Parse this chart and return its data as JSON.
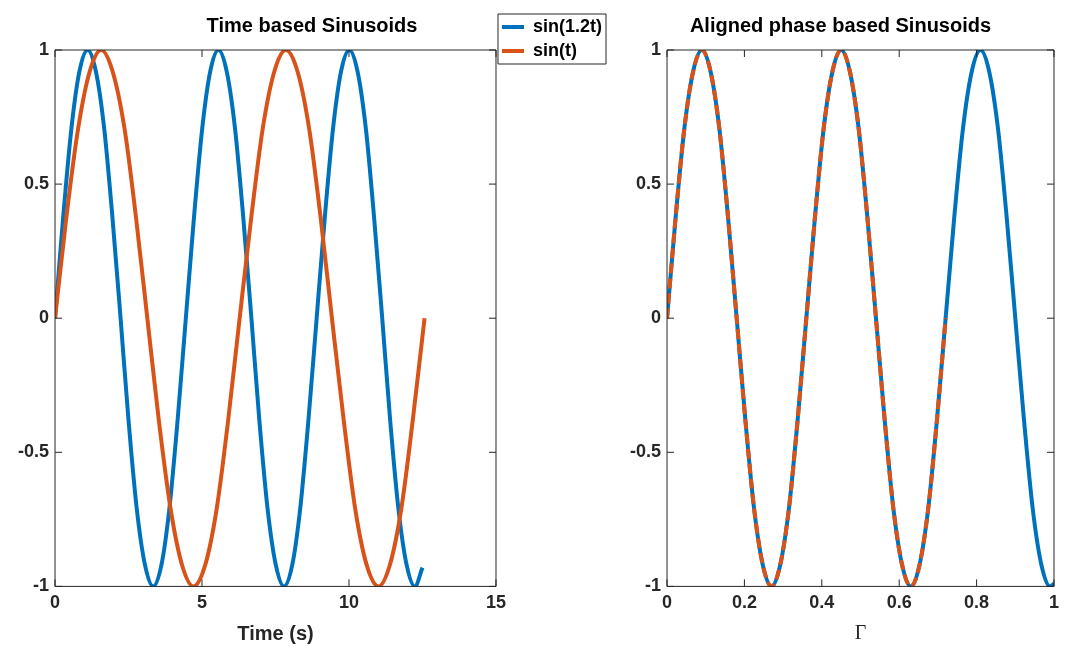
{
  "chart_data": [
    {
      "type": "line",
      "title": "Time based Sinusoids",
      "xlabel": "Time (s)",
      "xlim": [
        0,
        15
      ],
      "xticks": [
        0,
        5,
        10,
        15
      ],
      "ylim": [
        -1,
        1
      ],
      "yticks": [
        -1,
        -0.5,
        0,
        0.5,
        1
      ],
      "legend": "top right",
      "series": [
        {
          "name": "sin(1.2t)",
          "color": "#0072bd",
          "line_style": "solid",
          "x": [
            0,
            0.28,
            0.56,
            0.83,
            1.11,
            1.39,
            1.67,
            1.95,
            2.23,
            2.5,
            2.78,
            3.06,
            3.34,
            3.62,
            3.89,
            4.17,
            4.45,
            4.73,
            5.01,
            5.28,
            5.56,
            5.84,
            6.12,
            6.4,
            6.68,
            6.95,
            7.23,
            7.51,
            7.79,
            8.07,
            8.34,
            8.62,
            8.9,
            9.18,
            9.46,
            9.73,
            10.01,
            10.29,
            10.57,
            10.85,
            11.13,
            11.4,
            11.68,
            11.96,
            12.24,
            12.5
          ],
          "values": [
            0,
            0.38,
            0.71,
            0.92,
            1,
            0.92,
            0.71,
            0.38,
            0,
            -0.38,
            -0.71,
            -0.92,
            -1,
            -0.92,
            -0.71,
            -0.38,
            0,
            0.38,
            0.71,
            0.92,
            1,
            0.92,
            0.71,
            0.38,
            0,
            -0.38,
            -0.71,
            -0.92,
            -1,
            -0.92,
            -0.71,
            -0.38,
            0,
            0.38,
            0.71,
            0.92,
            1,
            0.92,
            0.71,
            0.38,
            0,
            -0.38,
            -0.71,
            -0.92,
            -1,
            -0.93
          ]
        },
        {
          "name": "sin(t)",
          "color": "#d95319",
          "line_style": "solid",
          "x": [
            0,
            0.39,
            0.79,
            1.18,
            1.57,
            1.96,
            2.36,
            2.75,
            3.14,
            3.53,
            3.93,
            4.32,
            4.71,
            5.11,
            5.5,
            5.89,
            6.28,
            6.68,
            7.07,
            7.46,
            7.85,
            8.25,
            8.64,
            9.03,
            9.42,
            9.82,
            10.21,
            10.6,
            11,
            11.39,
            11.78,
            12.17,
            12.57
          ],
          "values": [
            0,
            0.38,
            0.71,
            0.92,
            1,
            0.92,
            0.71,
            0.38,
            0,
            -0.38,
            -0.71,
            -0.92,
            -1,
            -0.92,
            -0.71,
            -0.38,
            0,
            0.38,
            0.71,
            0.92,
            1,
            0.92,
            0.71,
            0.38,
            0,
            -0.38,
            -0.71,
            -0.92,
            -1,
            -0.92,
            -0.71,
            -0.38,
            0
          ]
        }
      ]
    },
    {
      "type": "line",
      "title": "Aligned phase based Sinusoids",
      "xlabel": "Γ",
      "xlim": [
        0,
        1
      ],
      "xticks": [
        0,
        0.2,
        0.4,
        0.6,
        0.8,
        1
      ],
      "ylim": [
        -1,
        1
      ],
      "yticks": [
        -1,
        -0.5,
        0,
        0.5,
        1
      ],
      "series": [
        {
          "color": "#0072bd",
          "line_style": "solid",
          "x": [
            0,
            0.0225,
            0.045,
            0.0675,
            0.09,
            0.1125,
            0.135,
            0.1575,
            0.18,
            0.2025,
            0.225,
            0.2475,
            0.27,
            0.2925,
            0.315,
            0.3375,
            0.36,
            0.3825,
            0.405,
            0.4275,
            0.45,
            0.4725,
            0.495,
            0.5175,
            0.54,
            0.5625,
            0.585,
            0.6075,
            0.63,
            0.6525,
            0.675,
            0.6975,
            0.72,
            0.7425,
            0.765,
            0.7875,
            0.81,
            0.8325,
            0.855,
            0.8775,
            0.9,
            0.9225,
            0.945,
            0.9675,
            0.99,
            1
          ],
          "values": [
            0,
            0.38,
            0.71,
            0.92,
            1,
            0.92,
            0.71,
            0.38,
            0,
            -0.38,
            -0.71,
            -0.92,
            -1,
            -0.92,
            -0.71,
            -0.38,
            0,
            0.38,
            0.71,
            0.92,
            1,
            0.92,
            0.71,
            0.38,
            0,
            -0.38,
            -0.71,
            -0.92,
            -1,
            -0.92,
            -0.71,
            -0.38,
            0,
            0.38,
            0.71,
            0.92,
            1,
            0.92,
            0.71,
            0.38,
            0,
            -0.38,
            -0.71,
            -0.92,
            -1,
            -0.99
          ]
        },
        {
          "color": "#d95319",
          "line_style": "dashed",
          "x": [
            0,
            0.0225,
            0.045,
            0.0675,
            0.09,
            0.1125,
            0.135,
            0.1575,
            0.18,
            0.2025,
            0.225,
            0.2475,
            0.27,
            0.2925,
            0.315,
            0.3375,
            0.36,
            0.3825,
            0.405,
            0.4275,
            0.45,
            0.4725,
            0.495,
            0.5175,
            0.54,
            0.5625,
            0.585,
            0.6075,
            0.63,
            0.6525,
            0.675,
            0.6975,
            0.72
          ],
          "values": [
            0,
            0.38,
            0.71,
            0.92,
            1,
            0.92,
            0.71,
            0.38,
            0,
            -0.38,
            -0.71,
            -0.92,
            -1,
            -0.92,
            -0.71,
            -0.38,
            0,
            0.38,
            0.71,
            0.92,
            1,
            0.92,
            0.71,
            0.38,
            0,
            -0.38,
            -0.71,
            -0.92,
            -1,
            -0.92,
            -0.71,
            -0.38,
            0
          ]
        }
      ]
    }
  ]
}
